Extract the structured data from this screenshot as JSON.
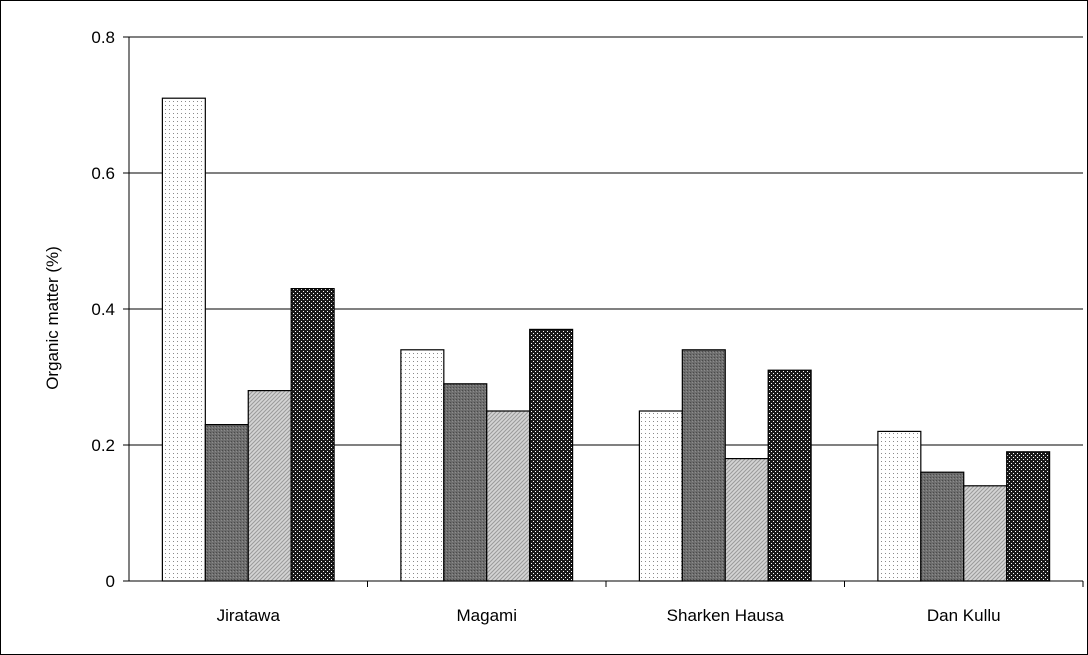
{
  "chart_data": {
    "type": "bar",
    "title": "",
    "xlabel": "",
    "ylabel": "Organic matter (%)",
    "ylim": [
      0,
      0.8
    ],
    "yticks": [
      0,
      0.2,
      0.4,
      0.6,
      0.8
    ],
    "ytick_labels": [
      "0",
      "0.2",
      "0.4",
      "0.6",
      "0.8"
    ],
    "grid": true,
    "legend": "none",
    "categories": [
      "Jiratawa",
      "Magami",
      "Sharken Hausa",
      "Dan Kullu"
    ],
    "series": [
      {
        "values": [
          0.71,
          0.34,
          0.25,
          0.22
        ],
        "pattern": "sparse-dots"
      },
      {
        "values": [
          0.23,
          0.29,
          0.34,
          0.16
        ],
        "pattern": "dark-grey"
      },
      {
        "values": [
          0.28,
          0.25,
          0.18,
          0.14
        ],
        "pattern": "light-hatch"
      },
      {
        "values": [
          0.43,
          0.37,
          0.31,
          0.19
        ],
        "pattern": "dense-black-dots"
      }
    ]
  }
}
